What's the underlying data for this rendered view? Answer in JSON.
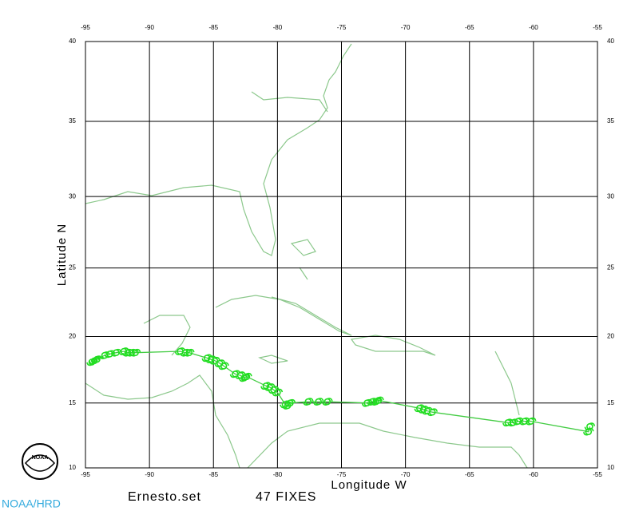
{
  "chart_data": {
    "type": "track-map",
    "title": "Ernesto.set",
    "subtitle": "47 FIXES",
    "xlabel": "Longitude W",
    "ylabel": "Latitude N",
    "credit": "NOAA/HRD",
    "logo": "NOAA",
    "projection": "mercator",
    "grid": true,
    "color": "#22dd22",
    "line_color": "#44cc44",
    "xlim": [
      -95,
      -55
    ],
    "ylim": [
      10,
      40
    ],
    "xticks": [
      -95,
      -90,
      -85,
      -80,
      -75,
      -70,
      -65,
      -60,
      -55
    ],
    "yticks": [
      10,
      15,
      20,
      25,
      30,
      35,
      40
    ],
    "x": [
      -55.6,
      -55.7,
      -60.2,
      -60.7,
      -61.2,
      -61.6,
      -62.0,
      -67.9,
      -68.3,
      -68.6,
      -68.9,
      -72.1,
      -72.3,
      -72.6,
      -73.0,
      -76.1,
      -76.8,
      -77.6,
      -79.0,
      -79.2,
      -79.4,
      -80.0,
      -80.3,
      -80.6,
      -80.9,
      -82.4,
      -82.6,
      -82.9,
      -83.3,
      -84.2,
      -84.5,
      -84.9,
      -85.2,
      -85.5,
      -86.9,
      -87.2,
      -87.6,
      -91.1,
      -91.4,
      -91.7,
      -92.0,
      -92.6,
      -93.1,
      -93.5,
      -94.1,
      -94.3,
      -94.5
    ],
    "values": [
      13.2,
      12.8,
      13.6,
      13.6,
      13.6,
      13.5,
      13.5,
      14.3,
      14.4,
      14.5,
      14.6,
      15.2,
      15.1,
      15.1,
      15.0,
      15.1,
      15.1,
      15.1,
      15.0,
      14.8,
      14.9,
      15.8,
      16.0,
      16.2,
      16.3,
      17.0,
      16.9,
      17.1,
      17.2,
      17.8,
      18.0,
      18.2,
      18.3,
      18.4,
      18.8,
      18.8,
      18.9,
      18.8,
      18.8,
      18.8,
      18.9,
      18.8,
      18.7,
      18.6,
      18.3,
      18.2,
      18.1
    ]
  }
}
